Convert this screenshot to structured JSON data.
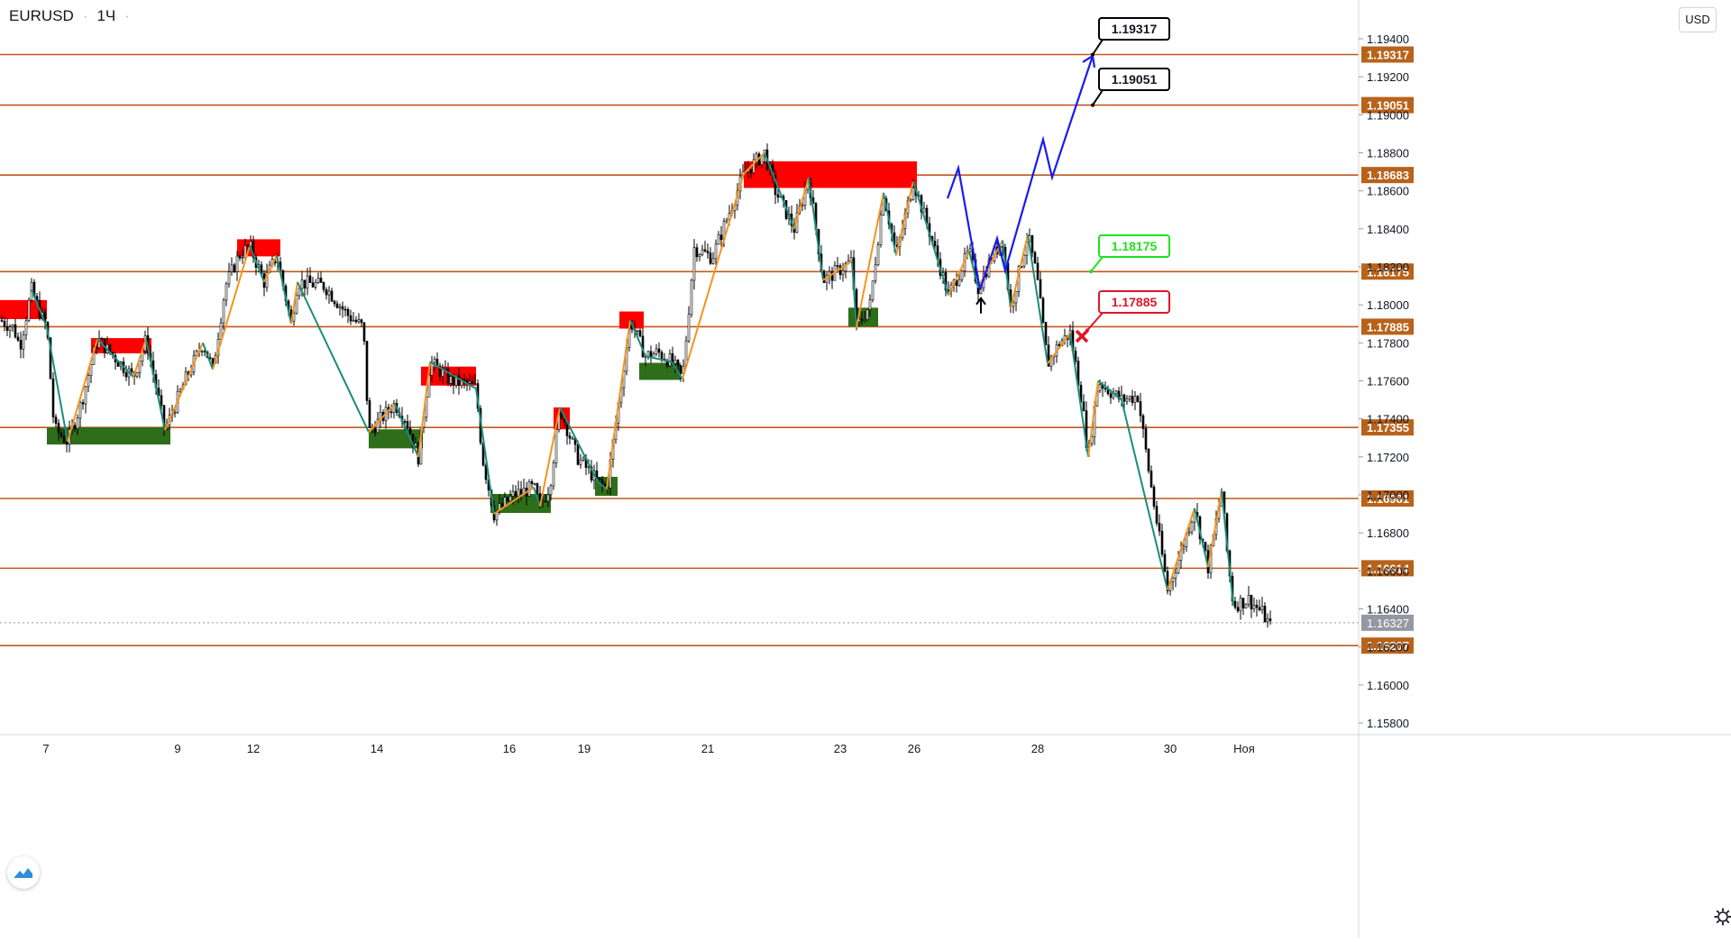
{
  "header": {
    "symbol": "EURUSD",
    "separator": "·",
    "timeframe": "1Ч",
    "dot": "·"
  },
  "currency_button": "USD",
  "colors": {
    "level_line": "#c0591e",
    "level_label_bg": "#b8621a",
    "supply_zone": "#ff0000",
    "demand_zone": "#2e6e1a",
    "zigzag_up": "#f7931a",
    "zigzag_down": "#1a8c7a",
    "projection": "#1a1af0",
    "current_price_bg": "#9598a1",
    "target_green": "#1ee21e",
    "target_red": "#e0152a"
  },
  "icons": {
    "logo": "tradingview-logo-icon",
    "settings": "gear-icon",
    "arrow": "up-arrow-icon",
    "invalidation": "x-mark-icon"
  },
  "chart_data": {
    "type": "candlestick",
    "symbol": "EURUSD",
    "interval": "1Ч",
    "ylim": [
      1.1575,
      1.1948
    ],
    "y_ticks": [
      "1.19400",
      "1.19200",
      "1.19000",
      "1.18800",
      "1.18600",
      "1.18400",
      "1.18200",
      "1.18000",
      "1.17800",
      "1.17600",
      "1.17400",
      "1.17200",
      "1.17000",
      "1.16800",
      "1.16600",
      "1.16400",
      "1.16200",
      "1.16000",
      "1.15800"
    ],
    "x_ticks": [
      "7",
      "9",
      "12",
      "14",
      "16",
      "19",
      "21",
      "23",
      "26",
      "28",
      "30",
      "Ноя"
    ],
    "levels": [
      "1.19317",
      "1.19051",
      "1.18683",
      "1.18175",
      "1.17885",
      "1.17355",
      "1.16981",
      "1.16614",
      "1.16207"
    ],
    "current_price": "1.16327",
    "callouts": [
      {
        "text": "1.19317",
        "style": "black"
      },
      {
        "text": "1.19051",
        "style": "black"
      },
      {
        "text": "1.18175",
        "style": "green"
      },
      {
        "text": "1.17885",
        "style": "red"
      }
    ],
    "supply_zones": [
      {
        "x_from": 0,
        "x_to": 52,
        "y_from": 1.17925,
        "y_to": 1.18025
      },
      {
        "x_from": 101,
        "x_to": 168,
        "y_from": 1.17745,
        "y_to": 1.17825
      },
      {
        "x_from": 263,
        "x_to": 311,
        "y_from": 1.18255,
        "y_to": 1.18345
      },
      {
        "x_from": 467,
        "x_to": 528,
        "y_from": 1.17575,
        "y_to": 1.17675
      },
      {
        "x_from": 687,
        "x_to": 714,
        "y_from": 1.17875,
        "y_to": 1.17965
      },
      {
        "x_from": 614,
        "x_to": 632,
        "y_from": 1.17345,
        "y_to": 1.1746
      },
      {
        "x_from": 825,
        "x_to": 1017,
        "y_from": 1.18615,
        "y_to": 1.18755
      }
    ],
    "demand_zones": [
      {
        "x_from": 52,
        "x_to": 189,
        "y_from": 1.17265,
        "y_to": 1.17355
      },
      {
        "x_from": 409,
        "x_to": 469,
        "y_from": 1.17245,
        "y_to": 1.17345
      },
      {
        "x_from": 544,
        "x_to": 611,
        "y_from": 1.16905,
        "y_to": 1.17005
      },
      {
        "x_from": 660,
        "x_to": 685,
        "y_from": 1.16995,
        "y_to": 1.17095
      },
      {
        "x_from": 709,
        "x_to": 755,
        "y_from": 1.17605,
        "y_to": 1.17695
      },
      {
        "x_from": 941,
        "x_to": 974,
        "y_from": 1.17885,
        "y_to": 1.17985
      }
    ],
    "zigzag": [
      [
        35,
        1.1808
      ],
      [
        52,
        1.1788
      ],
      [
        75,
        1.1728
      ],
      [
        108,
        1.1782
      ],
      [
        148,
        1.1762
      ],
      [
        162,
        1.1782
      ],
      [
        183,
        1.1734
      ],
      [
        225,
        1.178
      ],
      [
        236,
        1.1766
      ],
      [
        277,
        1.1831
      ],
      [
        293,
        1.1812
      ],
      [
        307,
        1.1826
      ],
      [
        323,
        1.179
      ],
      [
        330,
        1.1812
      ],
      [
        409,
        1.1733
      ],
      [
        438,
        1.1748
      ],
      [
        464,
        1.172
      ],
      [
        477,
        1.177
      ],
      [
        520,
        1.1758
      ],
      [
        528,
        1.1756
      ],
      [
        548,
        1.169
      ],
      [
        592,
        1.1704
      ],
      [
        599,
        1.1694
      ],
      [
        621,
        1.1746
      ],
      [
        663,
        1.1707
      ],
      [
        673,
        1.1703
      ],
      [
        681,
        1.1731
      ],
      [
        699,
        1.1792
      ],
      [
        716,
        1.1773
      ],
      [
        745,
        1.177
      ],
      [
        757,
        1.1761
      ],
      [
        825,
        1.1869
      ],
      [
        848,
        1.188
      ],
      [
        881,
        1.184
      ],
      [
        897,
        1.1867
      ],
      [
        913,
        1.1813
      ],
      [
        945,
        1.1823
      ],
      [
        950,
        1.1788
      ],
      [
        980,
        1.1859
      ],
      [
        994,
        1.1826
      ],
      [
        1013,
        1.1865
      ],
      [
        1052,
        1.1805
      ],
      [
        1075,
        1.1828
      ],
      [
        1085,
        1.1809
      ],
      [
        1112,
        1.1834
      ],
      [
        1121,
        1.1798
      ],
      [
        1140,
        1.1837
      ],
      [
        1162,
        1.1769
      ],
      [
        1187,
        1.1785
      ],
      [
        1207,
        1.172
      ],
      [
        1218,
        1.176
      ],
      [
        1244,
        1.175
      ],
      [
        1295,
        1.165
      ],
      [
        1325,
        1.1693
      ],
      [
        1340,
        1.1662
      ],
      [
        1355,
        1.1702
      ],
      [
        1368,
        1.1642
      ]
    ],
    "projection": [
      [
        1051,
        1.1856
      ],
      [
        1063,
        1.1872
      ],
      [
        1087,
        1.1808
      ],
      [
        1106,
        1.1835
      ],
      [
        1115,
        1.1818
      ],
      [
        1157,
        1.1887
      ],
      [
        1167,
        1.1867
      ],
      [
        1212,
        1.1931
      ]
    ],
    "price_path": [
      [
        0,
        1.1792
      ],
      [
        15,
        1.1788
      ],
      [
        22,
        1.1778
      ],
      [
        35,
        1.1808
      ],
      [
        45,
        1.1795
      ],
      [
        52,
        1.1788
      ],
      [
        60,
        1.1735
      ],
      [
        75,
        1.1728
      ],
      [
        90,
        1.1748
      ],
      [
        108,
        1.1782
      ],
      [
        128,
        1.1772
      ],
      [
        148,
        1.1762
      ],
      [
        162,
        1.1782
      ],
      [
        183,
        1.1734
      ],
      [
        205,
        1.176
      ],
      [
        225,
        1.178
      ],
      [
        236,
        1.1766
      ],
      [
        250,
        1.181
      ],
      [
        265,
        1.1826
      ],
      [
        277,
        1.1831
      ],
      [
        293,
        1.1812
      ],
      [
        307,
        1.1826
      ],
      [
        323,
        1.179
      ],
      [
        330,
        1.1812
      ],
      [
        360,
        1.181
      ],
      [
        385,
        1.1795
      ],
      [
        403,
        1.1788
      ],
      [
        409,
        1.1733
      ],
      [
        438,
        1.1748
      ],
      [
        450,
        1.174
      ],
      [
        464,
        1.172
      ],
      [
        477,
        1.177
      ],
      [
        500,
        1.176
      ],
      [
        520,
        1.1758
      ],
      [
        528,
        1.1756
      ],
      [
        535,
        1.172
      ],
      [
        548,
        1.169
      ],
      [
        570,
        1.17
      ],
      [
        592,
        1.1704
      ],
      [
        599,
        1.1694
      ],
      [
        610,
        1.1705
      ],
      [
        621,
        1.1746
      ],
      [
        640,
        1.172
      ],
      [
        663,
        1.1707
      ],
      [
        673,
        1.1703
      ],
      [
        681,
        1.1731
      ],
      [
        699,
        1.1792
      ],
      [
        716,
        1.1773
      ],
      [
        730,
        1.1775
      ],
      [
        745,
        1.177
      ],
      [
        757,
        1.1761
      ],
      [
        770,
        1.183
      ],
      [
        790,
        1.1825
      ],
      [
        810,
        1.185
      ],
      [
        825,
        1.1869
      ],
      [
        848,
        1.188
      ],
      [
        860,
        1.186
      ],
      [
        881,
        1.184
      ],
      [
        897,
        1.1867
      ],
      [
        905,
        1.184
      ],
      [
        913,
        1.1813
      ],
      [
        930,
        1.1818
      ],
      [
        945,
        1.1823
      ],
      [
        950,
        1.1788
      ],
      [
        965,
        1.18
      ],
      [
        980,
        1.1859
      ],
      [
        994,
        1.1826
      ],
      [
        1013,
        1.1865
      ],
      [
        1030,
        1.184
      ],
      [
        1052,
        1.1805
      ],
      [
        1075,
        1.1828
      ],
      [
        1085,
        1.1809
      ],
      [
        1100,
        1.1825
      ],
      [
        1112,
        1.1834
      ],
      [
        1121,
        1.1798
      ],
      [
        1140,
        1.1837
      ],
      [
        1150,
        1.1815
      ],
      [
        1162,
        1.1769
      ],
      [
        1175,
        1.178
      ],
      [
        1187,
        1.1785
      ],
      [
        1200,
        1.175
      ],
      [
        1207,
        1.172
      ],
      [
        1218,
        1.176
      ],
      [
        1230,
        1.1755
      ],
      [
        1244,
        1.175
      ],
      [
        1262,
        1.1752
      ],
      [
        1275,
        1.171
      ],
      [
        1295,
        1.165
      ],
      [
        1310,
        1.167
      ],
      [
        1325,
        1.1693
      ],
      [
        1340,
        1.1662
      ],
      [
        1355,
        1.1702
      ],
      [
        1362,
        1.1665
      ],
      [
        1368,
        1.1642
      ],
      [
        1385,
        1.1645
      ],
      [
        1400,
        1.1638
      ],
      [
        1410,
        1.163
      ]
    ]
  }
}
